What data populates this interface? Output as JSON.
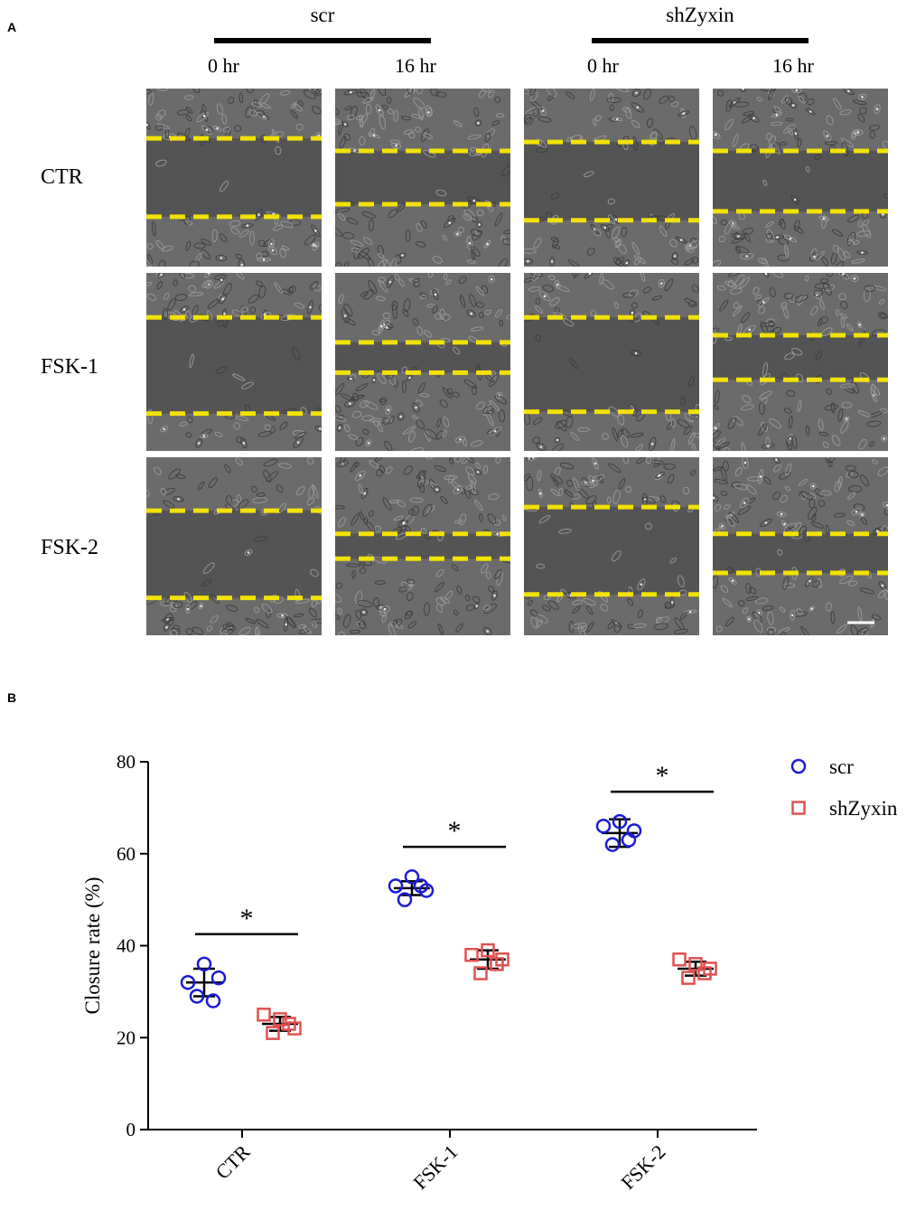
{
  "panel_a": {
    "letter": "A",
    "groups": [
      {
        "label": "scr",
        "times": [
          "0 hr",
          "16 hr"
        ]
      },
      {
        "label": "shZyxin",
        "times": [
          "0 hr",
          "16 hr"
        ]
      }
    ],
    "rows": [
      "CTR",
      "FSK-1",
      "FSK-2"
    ],
    "wound_line_color": "#f2e200"
  },
  "panel_b": {
    "letter": "B"
  },
  "chart_data": {
    "type": "scatter",
    "ylabel": "Closure rate (%)",
    "xlabel": "",
    "ylim": [
      0,
      80
    ],
    "yticks": [
      0,
      20,
      40,
      60,
      80
    ],
    "categories": [
      "CTR",
      "FSK-1",
      "FSK-2"
    ],
    "legend_position": "top-right",
    "series": [
      {
        "name": "scr",
        "marker": "circle",
        "color": "#1a1ad6",
        "points": [
          [
            32,
            36,
            33,
            29,
            28
          ],
          [
            53,
            55,
            52,
            50,
            53
          ],
          [
            66,
            67,
            65,
            62,
            63
          ]
        ],
        "mean": [
          32,
          52.5,
          64.5
        ],
        "sd": [
          3,
          1.5,
          3
        ]
      },
      {
        "name": "shZyxin",
        "marker": "square",
        "color": "#e05050",
        "points": [
          [
            25,
            24,
            22,
            21,
            23
          ],
          [
            38,
            39,
            37,
            34,
            36
          ],
          [
            37,
            36,
            35,
            33,
            34
          ]
        ],
        "mean": [
          23,
          37,
          35
        ],
        "sd": [
          1.5,
          2,
          1.5
        ]
      }
    ],
    "significance": [
      {
        "category": "CTR",
        "label": "*"
      },
      {
        "category": "FSK-1",
        "label": "*"
      },
      {
        "category": "FSK-2",
        "label": "*"
      }
    ]
  }
}
